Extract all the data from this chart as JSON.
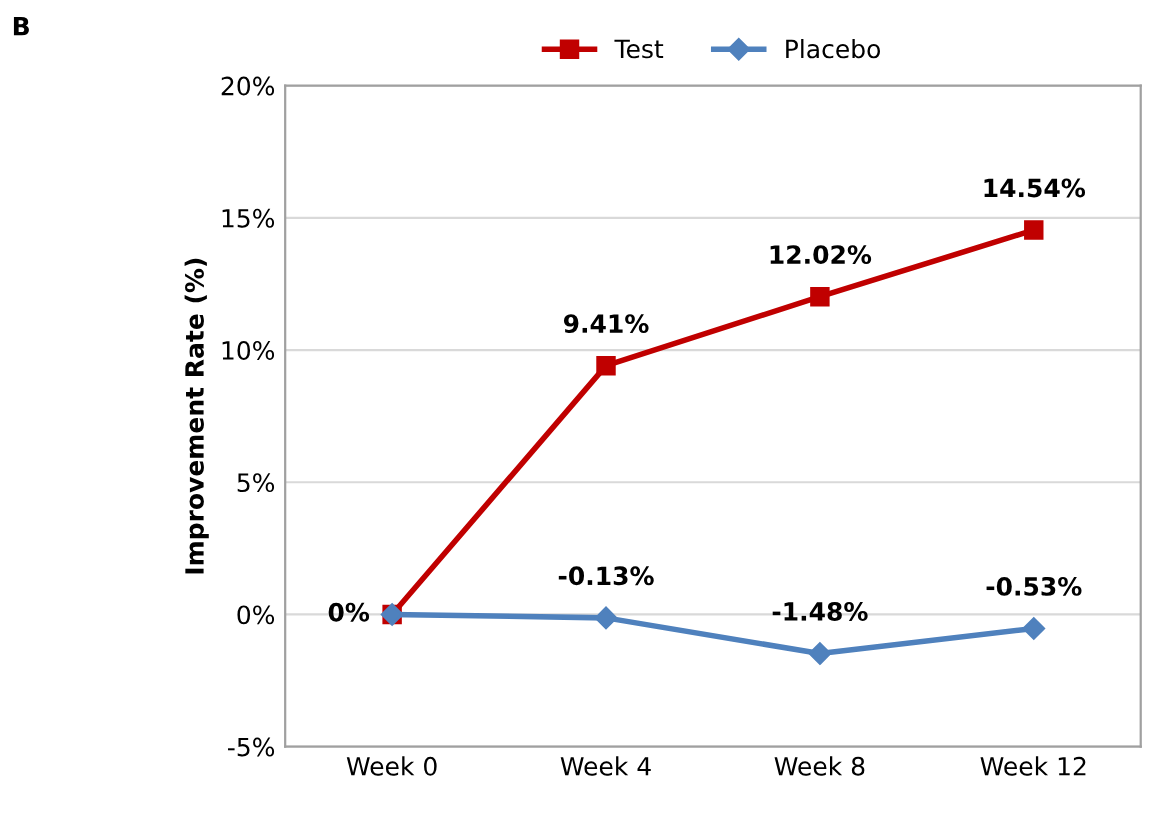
{
  "chart_data": {
    "type": "line",
    "ylabel": "Improvement Rate (%)",
    "annotations": [
      "B"
    ],
    "categories": [
      "Week 0",
      "Week 4",
      "Week 8",
      "Week 12"
    ],
    "series": [
      {
        "name": "Test",
        "color": "#c00000",
        "marker": "square",
        "values": [
          0,
          9.41,
          12.02,
          14.54
        ],
        "value_labels": [
          "0%",
          "9.41%",
          "12.02%",
          "14.54%"
        ]
      },
      {
        "name": "Placebo",
        "color": "#4f81bd",
        "marker": "diamond",
        "values": [
          0,
          -0.13,
          -1.48,
          -0.53
        ],
        "value_labels": [
          null,
          "-0.13%",
          "-1.48%",
          "-0.53%"
        ]
      }
    ],
    "ylim": [
      -5,
      20
    ],
    "yticks": [
      {
        "value": -5,
        "label": "-5%"
      },
      {
        "value": 0,
        "label": "0%"
      },
      {
        "value": 5,
        "label": "5%"
      },
      {
        "value": 10,
        "label": "10%"
      },
      {
        "value": 15,
        "label": "15%"
      },
      {
        "value": 20,
        "label": "20%"
      }
    ],
    "grid": "y",
    "legend": "top",
    "line_style": "solid"
  }
}
